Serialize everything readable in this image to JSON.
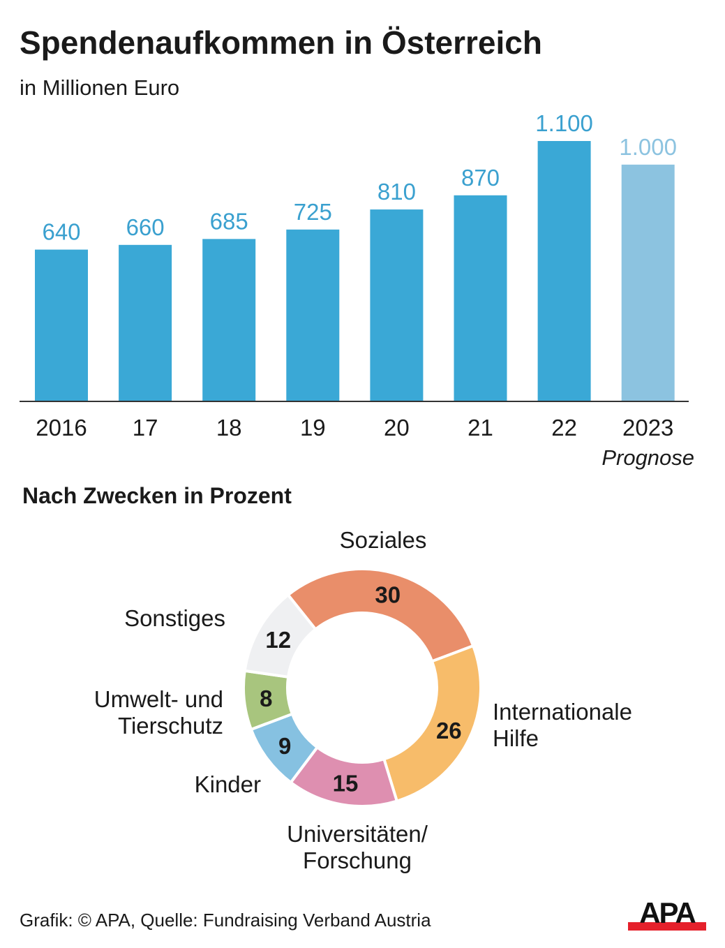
{
  "header": {
    "title": "Spendenaufkommen in Österreich",
    "subtitle": "in Millionen Euro"
  },
  "section_title": "Nach Zwecken in Prozent",
  "footer": {
    "credit": "Grafik: © APA, Quelle: Fundraising Verband Austria",
    "logo_text": "APA"
  },
  "colors": {
    "bar": "#3aa8d6",
    "bar_forecast": "#8cc3e0",
    "label": "#3aa0cf",
    "label_forecast": "#8cc3e0",
    "axis": "#333333",
    "logo_red": "#e5202b"
  },
  "chart_data": [
    {
      "type": "bar",
      "title": "Spendenaufkommen in Österreich",
      "subtitle": "in Millionen Euro",
      "categories": [
        "2016",
        "17",
        "18",
        "19",
        "20",
        "21",
        "22",
        "2023"
      ],
      "values": [
        640,
        660,
        685,
        725,
        810,
        870,
        1100,
        1000
      ],
      "value_labels": [
        "640",
        "660",
        "685",
        "725",
        "810",
        "870",
        "1.100",
        "1.000"
      ],
      "forecast": [
        false,
        false,
        false,
        false,
        false,
        false,
        false,
        true
      ],
      "forecast_note": "Prognose",
      "xlabel": "",
      "ylabel": "",
      "ylim": [
        0,
        1100
      ],
      "grid": false
    },
    {
      "type": "pie",
      "title": "Nach Zwecken in Prozent",
      "donut": true,
      "slices": [
        {
          "label": "Soziales",
          "lines": [
            "Soziales"
          ],
          "value": 30,
          "color": "#e98e6a"
        },
        {
          "label": "Internationale Hilfe",
          "lines": [
            "Internationale",
            "Hilfe"
          ],
          "value": 26,
          "color": "#f7bc6a"
        },
        {
          "label": "Universitäten/ Forschung",
          "lines": [
            "Universitäten/",
            "Forschung"
          ],
          "value": 15,
          "color": "#de8fb0"
        },
        {
          "label": "Kinder",
          "lines": [
            "Kinder"
          ],
          "value": 9,
          "color": "#86c1e1"
        },
        {
          "label": "Umwelt- und Tierschutz",
          "lines": [
            "Umwelt- und",
            "Tierschutz"
          ],
          "value": 8,
          "color": "#a8c57e"
        },
        {
          "label": "Sonstiges",
          "lines": [
            "Sonstiges"
          ],
          "value": 12,
          "color": "#eff0f2"
        }
      ]
    }
  ]
}
